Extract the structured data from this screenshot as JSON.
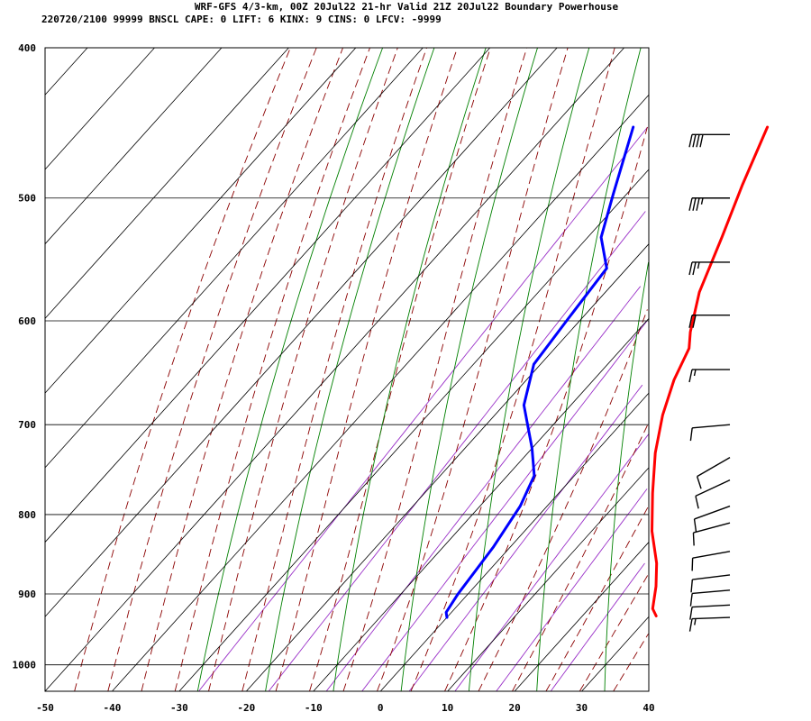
{
  "header": {
    "line1": "WRF-GFS 4/3-km, 00Z 20Jul22 21-hr Valid 21Z 20Jul22 Boundary Powerhouse",
    "line2": "220720/2100 99999  BNSCL   CAPE:      0 LIFT:      6 KINX:      9 CINS:      0 LFCV: -9999"
  },
  "chart_data": {
    "type": "line",
    "subtype": "skew-T log-P sounding",
    "x_axis": {
      "ticks": [
        -50,
        -40,
        -30,
        -20,
        -10,
        0,
        10,
        20,
        30,
        40
      ],
      "range": [
        -50,
        40
      ],
      "unit": "°C"
    },
    "y_axis": {
      "scale": "log",
      "ticks": [
        400,
        500,
        600,
        700,
        800,
        900,
        1000
      ],
      "range": [
        400,
        1040
      ],
      "unit": "hPa"
    },
    "grid": true,
    "series": [
      {
        "role": "temperature",
        "color": "#ff0000",
        "points": [
          [
            -18,
            450
          ],
          [
            -14,
            490
          ],
          [
            -10,
            530
          ],
          [
            -6,
            575
          ],
          [
            -2,
            610
          ],
          [
            0,
            625
          ],
          [
            2,
            655
          ],
          [
            5,
            690
          ],
          [
            9,
            730
          ],
          [
            14,
            775
          ],
          [
            19,
            820
          ],
          [
            24,
            860
          ],
          [
            27,
            890
          ],
          [
            29.5,
            920
          ],
          [
            31,
            930
          ]
        ]
      },
      {
        "role": "dewpoint",
        "color": "#0000ff",
        "points": [
          [
            -38,
            450
          ],
          [
            -32,
            497
          ],
          [
            -28,
            530
          ],
          [
            -23,
            555
          ],
          [
            -22,
            598
          ],
          [
            -21,
            640
          ],
          [
            -17,
            680
          ],
          [
            -10,
            725
          ],
          [
            -6,
            755
          ],
          [
            -4,
            790
          ],
          [
            -2.5,
            840
          ],
          [
            -1.5,
            900
          ],
          [
            -0.8,
            925
          ],
          [
            0,
            932
          ]
        ]
      }
    ],
    "wind_barbs": [
      {
        "pressure": 455,
        "direction": 270,
        "speed": 40
      },
      {
        "pressure": 500,
        "direction": 270,
        "speed": 35
      },
      {
        "pressure": 550,
        "direction": 270,
        "speed": 25
      },
      {
        "pressure": 595,
        "direction": 270,
        "speed": 20
      },
      {
        "pressure": 645,
        "direction": 270,
        "speed": 15
      },
      {
        "pressure": 700,
        "direction": 265,
        "speed": 10
      },
      {
        "pressure": 735,
        "direction": 240,
        "speed": 10
      },
      {
        "pressure": 760,
        "direction": 245,
        "speed": 10
      },
      {
        "pressure": 790,
        "direction": 250,
        "speed": 10
      },
      {
        "pressure": 810,
        "direction": 255,
        "speed": 10
      },
      {
        "pressure": 845,
        "direction": 260,
        "speed": 10
      },
      {
        "pressure": 875,
        "direction": 263,
        "speed": 10
      },
      {
        "pressure": 895,
        "direction": 265,
        "speed": 10
      },
      {
        "pressure": 915,
        "direction": 267,
        "speed": 10
      },
      {
        "pressure": 932,
        "direction": 268,
        "speed": 15
      }
    ]
  },
  "colors": {
    "isotherm": "#000000",
    "isobar": "#000000",
    "dry_adiabat": "#008000",
    "moist_adiabat": "#8b0000",
    "mixing_ratio": "#9a30c8",
    "temperature": "#ff0000",
    "dewpoint": "#0000ff",
    "barb": "#000000"
  }
}
